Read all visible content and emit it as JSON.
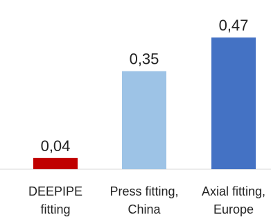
{
  "chart_data": {
    "type": "bar",
    "categories": [
      [
        "DEEPIPE",
        "fitting"
      ],
      [
        "Press fitting,",
        "China"
      ],
      [
        "Axial fitting,",
        "Europe"
      ]
    ],
    "values": [
      0.04,
      0.35,
      0.47
    ],
    "value_labels": [
      "0,04",
      "0,35",
      "0,47"
    ],
    "colors": [
      "#C00000",
      "#9DC3E6",
      "#4472C4"
    ],
    "ylim": [
      0,
      0.5
    ],
    "grid": false,
    "legend": "none",
    "title": "",
    "xlabel": "",
    "ylabel": ""
  }
}
